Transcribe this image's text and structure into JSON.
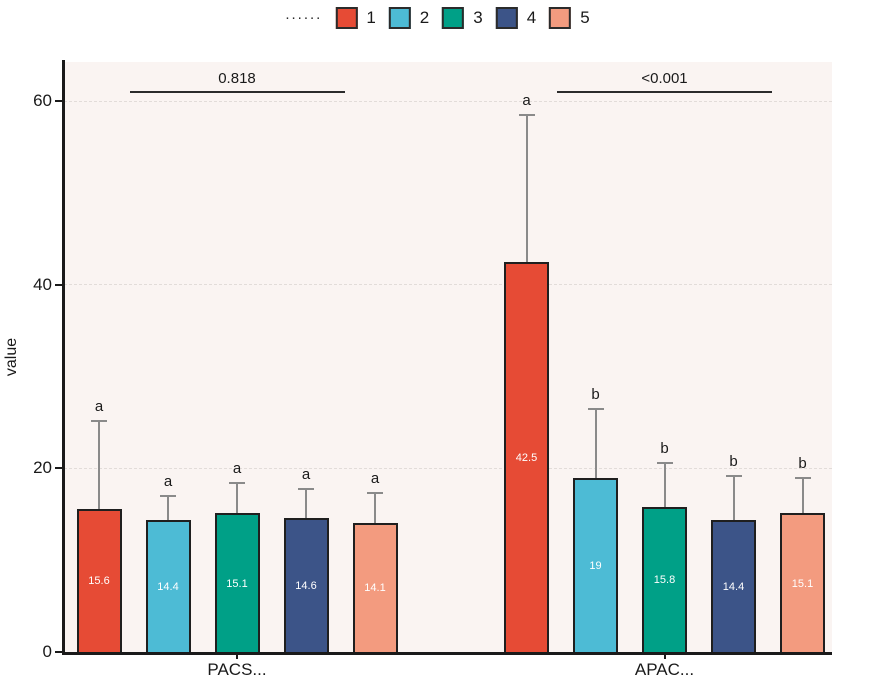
{
  "chart_data": {
    "type": "bar",
    "title": "",
    "xlabel": "",
    "ylabel": "value",
    "ylim": [
      0,
      64
    ],
    "yticks": [
      0,
      20,
      40,
      60
    ],
    "grid": "horizontal dashed gridlines at 20, 40, 60",
    "legend": {
      "title": "......",
      "position": "top-center",
      "entries": [
        {
          "label": "1",
          "color": "#E64B35"
        },
        {
          "label": "2",
          "color": "#4DBBD5"
        },
        {
          "label": "3",
          "color": "#00A087"
        },
        {
          "label": "4",
          "color": "#3C5488"
        },
        {
          "label": "5",
          "color": "#F39B7F"
        }
      ]
    },
    "groups": [
      {
        "category": "PACS...",
        "p_value": "0.818",
        "bars": [
          {
            "series": "1",
            "value": 15.6,
            "label": "15.6",
            "error_top": 25.2,
            "letter": "a",
            "color": "#E64B35"
          },
          {
            "series": "2",
            "value": 14.4,
            "label": "14.4",
            "error_top": 17.0,
            "letter": "a",
            "color": "#4DBBD5"
          },
          {
            "series": "3",
            "value": 15.1,
            "label": "15.1",
            "error_top": 18.4,
            "letter": "a",
            "color": "#00A087"
          },
          {
            "series": "4",
            "value": 14.6,
            "label": "14.6",
            "error_top": 17.8,
            "letter": "a",
            "color": "#3C5488"
          },
          {
            "series": "5",
            "value": 14.1,
            "label": "14.1",
            "error_top": 17.3,
            "letter": "a",
            "color": "#F39B7F"
          }
        ]
      },
      {
        "category": "APAC...",
        "p_value": "<0.001",
        "bars": [
          {
            "series": "1",
            "value": 42.5,
            "label": "42.5",
            "error_top": 58.5,
            "letter": "a",
            "color": "#E64B35"
          },
          {
            "series": "2",
            "value": 19.0,
            "label": "19",
            "error_top": 26.5,
            "letter": "b",
            "color": "#4DBBD5"
          },
          {
            "series": "3",
            "value": 15.8,
            "label": "15.8",
            "error_top": 20.6,
            "letter": "b",
            "color": "#00A087"
          },
          {
            "series": "4",
            "value": 14.4,
            "label": "14.4",
            "error_top": 19.2,
            "letter": "b",
            "color": "#3C5488"
          },
          {
            "series": "5",
            "value": 15.1,
            "label": "15.1",
            "error_top": 18.9,
            "letter": "b",
            "color": "#F39B7F"
          }
        ]
      }
    ],
    "colors": {
      "plot_background": "#FAF4F2",
      "gridline": "#E2DCD9",
      "axis": "#1A1A1A",
      "error_bar": "#8A8A8A",
      "bar_border": "#1F1F1F",
      "bar_value_text": "#FFFFFF"
    }
  }
}
